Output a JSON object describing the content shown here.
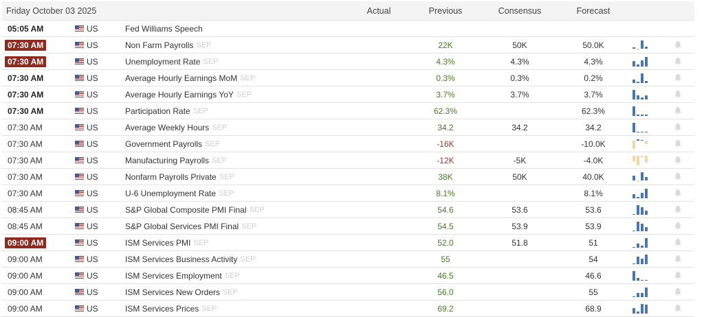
{
  "header": {
    "date": "Friday October 03 2025",
    "columns": {
      "actual": "Actual",
      "previous": "Previous",
      "consensus": "Consensus",
      "forecast": "Forecast"
    }
  },
  "colors": {
    "badge": "#8e2b1f",
    "positive": "#4b7b26",
    "negative": "#9c3b2a",
    "spark_up": "#4a78ad",
    "spark_down": "#f3d8a6"
  },
  "rows": [
    {
      "time": "05:05 AM",
      "style": "bold",
      "country": "US",
      "event": "Fed Williams Speech",
      "period": "",
      "actual": "",
      "previous": "",
      "prev_sign": "",
      "consensus": "",
      "forecast": "",
      "spark": []
    },
    {
      "time": "07:30 AM",
      "style": "badge",
      "country": "US",
      "event": "Non Farm Payrolls",
      "period": "SEP",
      "actual": "",
      "previous": "22K",
      "prev_sign": "pos",
      "consensus": "50K",
      "forecast": "50.0K",
      "spark": [
        0.15,
        -0.15,
        1,
        0.3
      ]
    },
    {
      "time": "07:30 AM",
      "style": "badge",
      "country": "US",
      "event": "Unemployment Rate",
      "period": "SEP",
      "actual": "",
      "previous": "4.3%",
      "prev_sign": "pos",
      "consensus": "4.3%",
      "forecast": "4.3%",
      "spark": [
        0.55,
        0.2,
        0.65,
        1
      ]
    },
    {
      "time": "07:30 AM",
      "style": "bold",
      "country": "US",
      "event": "Average Hourly Earnings MoM",
      "period": "SEP",
      "actual": "",
      "previous": "0.3%",
      "prev_sign": "pos",
      "consensus": "0.3%",
      "forecast": "0.2%",
      "spark": [
        0.35,
        0.15,
        1,
        0.2
      ]
    },
    {
      "time": "07:30 AM",
      "style": "bold",
      "country": "US",
      "event": "Average Hourly Earnings YoY",
      "period": "SEP",
      "actual": "",
      "previous": "3.7%",
      "prev_sign": "pos",
      "consensus": "3.7%",
      "forecast": "3.7%",
      "spark": [
        1,
        0.4,
        0.25,
        0.4
      ]
    },
    {
      "time": "07:30 AM",
      "style": "bold",
      "country": "US",
      "event": "Participation Rate",
      "period": "SEP",
      "actual": "",
      "previous": "62.3%",
      "prev_sign": "pos",
      "consensus": "",
      "forecast": "62.3%",
      "spark": [
        1,
        0.15,
        0.15,
        0.15
      ]
    },
    {
      "time": "07:30 AM",
      "style": "",
      "country": "US",
      "event": "Average Weekly Hours",
      "period": "SEP",
      "actual": "",
      "previous": "34.2",
      "prev_sign": "pos",
      "consensus": "34.2",
      "forecast": "34.2",
      "spark": [
        1,
        0.1,
        0.1,
        0.1
      ]
    },
    {
      "time": "07:30 AM",
      "style": "",
      "country": "US",
      "event": "Government Payrolls",
      "period": "SEP",
      "actual": "",
      "previous": "-16K",
      "prev_sign": "neg",
      "consensus": "",
      "forecast": "-10.0K",
      "spark": [
        -0.8,
        0.15,
        0.1,
        -0.3
      ]
    },
    {
      "time": "07:30 AM",
      "style": "",
      "country": "US",
      "event": "Manufacturing Payrolls",
      "period": "SEP",
      "actual": "",
      "previous": "-12K",
      "prev_sign": "neg",
      "consensus": "-5K",
      "forecast": "-4.0K",
      "spark": [
        -0.6,
        -1,
        -0.1,
        -0.7
      ]
    },
    {
      "time": "07:30 AM",
      "style": "",
      "country": "US",
      "event": "Nonfarm Payrolls Private",
      "period": "SEP",
      "actual": "",
      "previous": "38K",
      "prev_sign": "pos",
      "consensus": "50K",
      "forecast": "40.0K",
      "spark": [
        0.6,
        -0.2,
        1,
        0.4
      ]
    },
    {
      "time": "07:30 AM",
      "style": "",
      "country": "US",
      "event": "U-6 Unemployment Rate",
      "period": "SEP",
      "actual": "",
      "previous": "8.1%",
      "prev_sign": "pos",
      "consensus": "",
      "forecast": "8.1%",
      "spark": [
        0.4,
        0.15,
        0.6,
        1
      ]
    },
    {
      "time": "08:45 AM",
      "style": "",
      "country": "US",
      "event": "S&P Global Composite PMI Final",
      "period": "SEP",
      "actual": "",
      "previous": "54.6",
      "prev_sign": "pos",
      "consensus": "53.6",
      "forecast": "53.6",
      "spark": [
        0.1,
        1,
        0.8,
        0.4
      ]
    },
    {
      "time": "08:45 AM",
      "style": "",
      "country": "US",
      "event": "S&P Global Services PMI Final",
      "period": "SEP",
      "actual": "",
      "previous": "54.5",
      "prev_sign": "pos",
      "consensus": "53.9",
      "forecast": "53.9",
      "spark": [
        0.1,
        1,
        0.8,
        0.4
      ]
    },
    {
      "time": "09:00 AM",
      "style": "badge",
      "country": "US",
      "event": "ISM Services PMI",
      "period": "SEP",
      "actual": "",
      "previous": "52.0",
      "prev_sign": "pos",
      "consensus": "51.8",
      "forecast": "51",
      "spark": [
        0.1,
        0.4,
        0.2,
        1
      ]
    },
    {
      "time": "09:00 AM",
      "style": "",
      "country": "US",
      "event": "ISM Services Business Activity",
      "period": "SEP",
      "actual": "",
      "previous": "55",
      "prev_sign": "pos",
      "consensus": "",
      "forecast": "54",
      "spark": [
        0.1,
        0.8,
        0.6,
        1
      ]
    },
    {
      "time": "09:00 AM",
      "style": "",
      "country": "US",
      "event": "ISM Services Employment",
      "period": "SEP",
      "actual": "",
      "previous": "46.5",
      "prev_sign": "pos",
      "consensus": "",
      "forecast": "46.6",
      "spark": [
        1,
        0.3,
        0.05,
        0.05
      ]
    },
    {
      "time": "09:00 AM",
      "style": "",
      "country": "US",
      "event": "ISM Services New Orders",
      "period": "SEP",
      "actual": "",
      "previous": "56.0",
      "prev_sign": "pos",
      "consensus": "",
      "forecast": "55",
      "spark": [
        0.05,
        0.4,
        0.4,
        1
      ]
    },
    {
      "time": "09:00 AM",
      "style": "",
      "country": "US",
      "event": "ISM Services Prices",
      "period": "SEP",
      "actual": "",
      "previous": "69.2",
      "prev_sign": "pos",
      "consensus": "",
      "forecast": "68.9",
      "spark": [
        0.6,
        0.2,
        1,
        0.9
      ]
    }
  ]
}
